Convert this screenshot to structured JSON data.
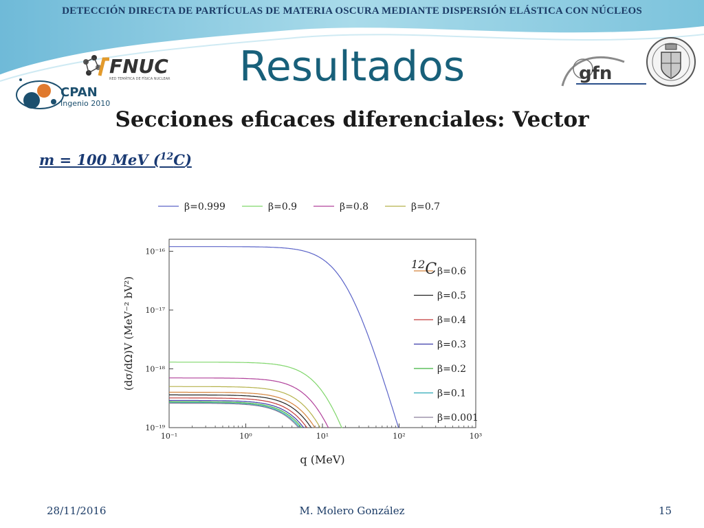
{
  "header": {
    "banner": "DETECCIÓN DIRECTA DE PARTÍCULAS DE MATERIA OSCURA MEDIANTE DISPERSIÓN ELÁSTICA CON NÚCLEOS",
    "title": "Resultados",
    "subtitle": "Secciones eficaces diferenciales: Vector"
  },
  "formula": {
    "lhs": "m = 100 MeV (",
    "isotope_mass": "12",
    "isotope_symbol": "C",
    "close": ")"
  },
  "logos": {
    "fanuc_main": "FNUC",
    "fanuc_sub": "RED TEMÁTICA DE FÍSICA NUCLEAR",
    "cpan_main": "CPAN",
    "cpan_sub": "Ingenio 2010",
    "gfn": "gfn"
  },
  "footer": {
    "date": "28/11/2016",
    "author": "M. Molero González",
    "page": "15"
  },
  "colors": {
    "title": "#18607a",
    "banner": "#1b3b66",
    "formula": "#1a3a73"
  },
  "chart_data": {
    "type": "line",
    "title": "",
    "xlabel": "q (MeV)",
    "ylabel": "(dσ/dΩ)V (MeV⁻² bV²)",
    "x_scale": "log",
    "y_scale": "log",
    "xlim": [
      0.1,
      1000
    ],
    "ylim": [
      1e-19,
      1.6e-16
    ],
    "x_ticks": [
      "10⁻¹",
      "10⁰",
      "10¹",
      "10²",
      "10³"
    ],
    "y_ticks": [
      "10⁻¹⁶",
      "10⁻¹⁷",
      "10⁻¹⁸",
      "10⁻¹⁹"
    ],
    "annotation": {
      "mass": "12",
      "symbol": "C"
    },
    "legend_top": "top",
    "legend_right": "right",
    "grid": false,
    "series": [
      {
        "name": "β=0.999",
        "color": "#5a63c8",
        "plateau": 1.2e-16,
        "knee": 20,
        "legend": "top"
      },
      {
        "name": "β=0.9",
        "color": "#7fd66a",
        "plateau": 1.3e-18,
        "knee": 12,
        "legend": "top"
      },
      {
        "name": "β=0.8",
        "color": "#b0409a",
        "plateau": 7e-19,
        "knee": 10,
        "legend": "top"
      },
      {
        "name": "β=0.7",
        "color": "#b5b14a",
        "plateau": 5e-19,
        "knee": 9,
        "legend": "top"
      },
      {
        "name": "β=0.6",
        "color": "#d4823a",
        "plateau": 4e-19,
        "knee": 8.5,
        "legend": "right"
      },
      {
        "name": "β=0.5",
        "color": "#222222",
        "plateau": 3.6e-19,
        "knee": 8,
        "legend": "right"
      },
      {
        "name": "β=0.4",
        "color": "#c23b3b",
        "plateau": 3.2e-19,
        "knee": 7.5,
        "legend": "right"
      },
      {
        "name": "β=0.3",
        "color": "#3a3aa8",
        "plateau": 2.9e-19,
        "knee": 7.2,
        "legend": "right"
      },
      {
        "name": "β=0.2",
        "color": "#3fb33f",
        "plateau": 2.75e-19,
        "knee": 7,
        "legend": "right"
      },
      {
        "name": "β=0.1",
        "color": "#2aa8b5",
        "plateau": 2.65e-19,
        "knee": 6.8,
        "legend": "right"
      },
      {
        "name": "β=0.001",
        "color": "#8a7d9a",
        "plateau": 2.6e-19,
        "knee": 6.6,
        "legend": "right"
      }
    ]
  }
}
